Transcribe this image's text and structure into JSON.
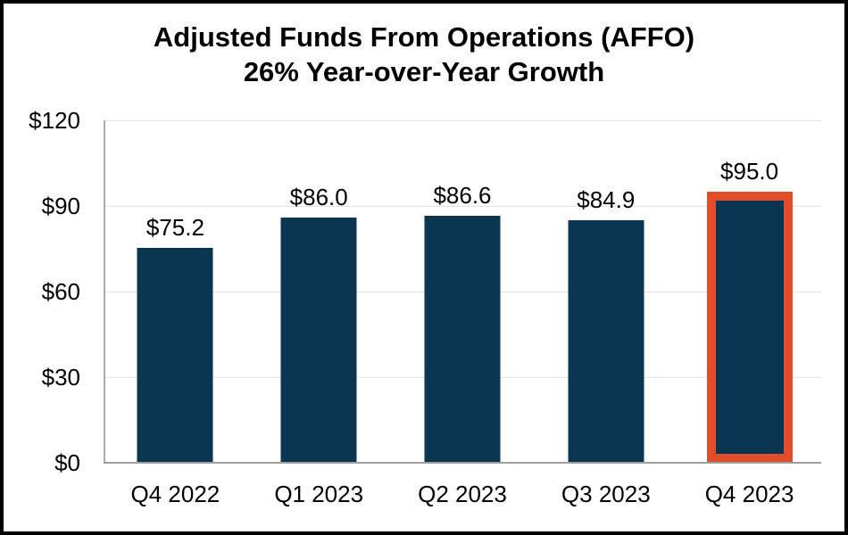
{
  "page": {
    "background": "#FFFFFF",
    "border_color": "#000000"
  },
  "chart_data": {
    "type": "bar",
    "title_line1": "Adjusted Funds From Operations (AFFO)",
    "title_line2": "26% Year-over-Year Growth",
    "categories": [
      "Q4 2022",
      "Q1 2023",
      "Q2 2023",
      "Q3 2023",
      "Q4 2023"
    ],
    "values": [
      75.2,
      86.0,
      86.6,
      84.9,
      95.0
    ],
    "value_labels": [
      "$75.2",
      "$86.0",
      "$86.6",
      "$84.9",
      "$95.0"
    ],
    "ylim": [
      0,
      120
    ],
    "yticks": [
      0,
      30,
      60,
      90,
      120
    ],
    "ytick_labels": [
      "$0",
      "$30",
      "$60",
      "$90",
      "$120"
    ],
    "grid": true,
    "legend": "none",
    "bar_color": "#0A3652",
    "highlight_index": 4,
    "highlight_border_color": "#E04F2A",
    "gridline_color": "#E2E2E2",
    "y_axis_line_color": "#ADADAD",
    "x_axis_line_color": "#A0A0A0"
  }
}
